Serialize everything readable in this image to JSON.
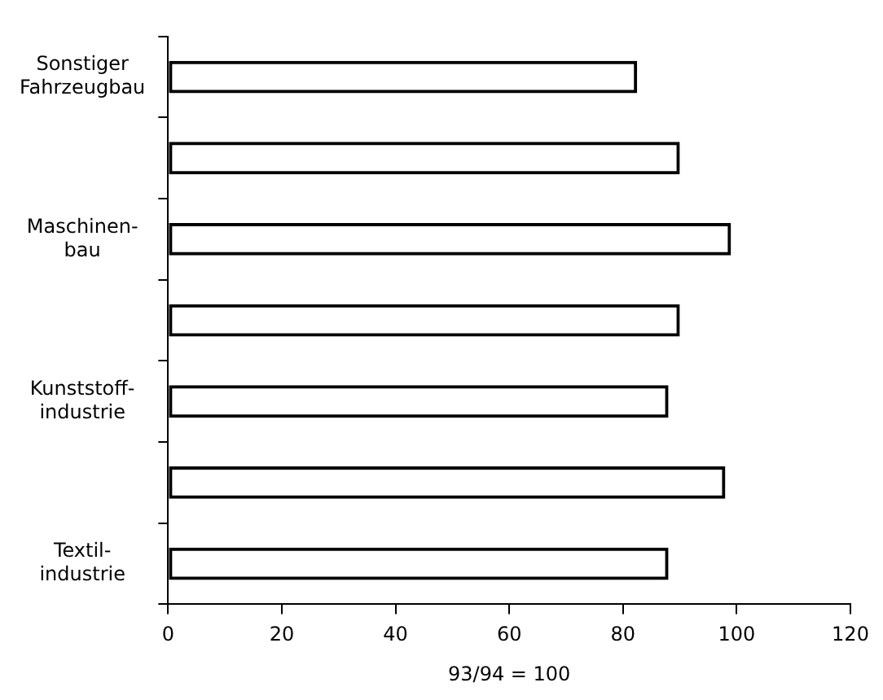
{
  "chart_data": {
    "type": "bar",
    "orientation": "horizontal",
    "xlabel": "93/94 = 100",
    "categories": [
      "Sonstiger\nFahrzeugbau",
      null,
      "Maschinen-\nbau",
      null,
      "Kunststoff-\nindustrie",
      null,
      "Textil-\nindustrie"
    ],
    "values": [
      82.5,
      90,
      99,
      90,
      88,
      98,
      88
    ],
    "color": "#000000",
    "xlim": [
      0,
      120
    ],
    "xticks": [
      0,
      20,
      40,
      60,
      80,
      100,
      120
    ],
    "grid": false,
    "legend": false
  }
}
